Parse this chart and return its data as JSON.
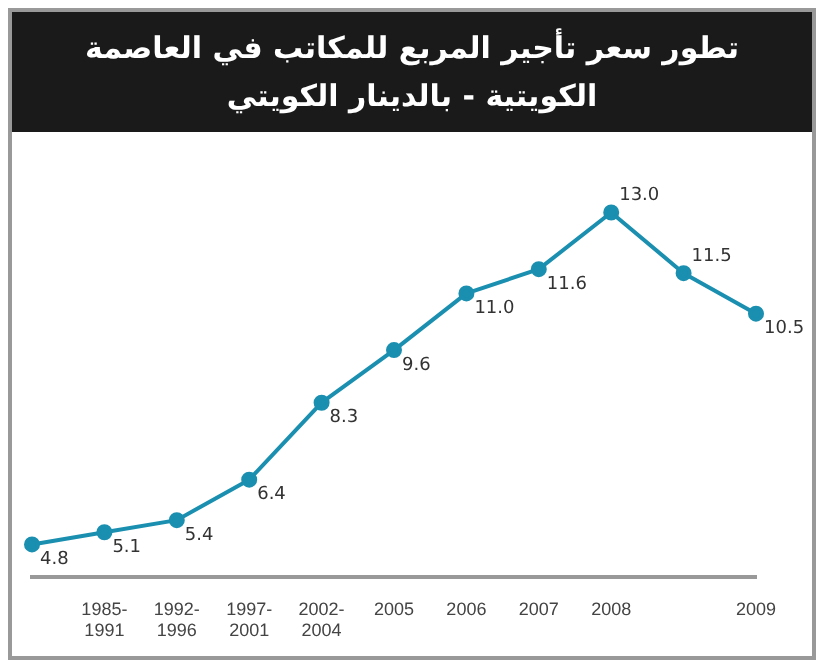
{
  "chart_data": {
    "type": "line",
    "title": "تطور سعر تأجير المربع للمكاتب في العاصمة الكويتية - بالدينار الكويتي",
    "categories": [
      null,
      "1985-1991",
      "1992-1996",
      "1997-2001",
      "2002-2004",
      "2005",
      "2006",
      "2007",
      "2008",
      null,
      "2009"
    ],
    "values": [
      4.8,
      5.1,
      5.4,
      6.4,
      8.3,
      9.6,
      11.0,
      11.6,
      13.0,
      11.5,
      10.5
    ],
    "value_labels": [
      "4.8",
      "5.1",
      "5.4",
      "6.4",
      "8.3",
      "9.6",
      "11.0",
      "11.6",
      "13.0",
      "11.5",
      "10.5"
    ],
    "color": "#1a8fb0",
    "marker": "circle",
    "grid": false,
    "legend": false
  }
}
